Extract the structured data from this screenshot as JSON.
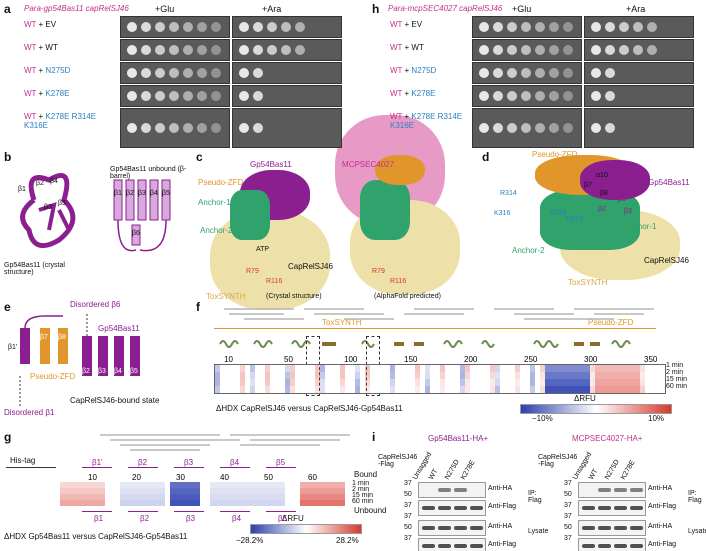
{
  "panel_labels": [
    "a",
    "b",
    "c",
    "d",
    "e",
    "f",
    "g",
    "h",
    "i"
  ],
  "panel_a": {
    "title": "Para-gp54Bas11 capRelSJ46",
    "cond_glu": "+Glu",
    "cond_ara": "+Ara",
    "rows": [
      {
        "wt": "WT",
        "plus": " + ",
        "rest": "EV",
        "rest_color": "#111"
      },
      {
        "wt": "WT",
        "plus": " + ",
        "rest": "WT",
        "rest_color": "#111"
      },
      {
        "wt": "WT",
        "plus": " + ",
        "rest": "N275D",
        "rest_color": "#2a7fc0"
      },
      {
        "wt": "WT",
        "plus": " + ",
        "rest": "K278E",
        "rest_color": "#2a7fc0"
      },
      {
        "wt": "WT",
        "plus": " + ",
        "rest": "K278E R314E K316E",
        "rest_color": "#2a7fc0"
      }
    ]
  },
  "panel_h": {
    "title": "Para-mcpSEC4027 capRelSJ46",
    "cond_glu": "+Glu",
    "cond_ara": "+Ara",
    "rows": [
      {
        "wt": "WT",
        "plus": " + ",
        "rest": "EV",
        "rest_color": "#111"
      },
      {
        "wt": "WT",
        "plus": " + ",
        "rest": "WT",
        "rest_color": "#111"
      },
      {
        "wt": "WT",
        "plus": " + ",
        "rest": "N275D",
        "rest_color": "#2a7fc0"
      },
      {
        "wt": "WT",
        "plus": " + ",
        "rest": "K278E",
        "rest_color": "#2a7fc0"
      },
      {
        "wt": "WT",
        "plus": " + ",
        "rest": "K278E R314E K316E",
        "rest_color": "#2a7fc0"
      }
    ]
  },
  "panel_b": {
    "crystal_label": "Gp54Bas11 (crystal structure)",
    "unbound_label": "Gp54Bas11 unbound (β-barrel)",
    "strands_crystal": [
      "β1",
      "β2",
      "β3",
      "β4",
      "β5"
    ],
    "strands_unbound": [
      "β1",
      "β2",
      "β3",
      "β4",
      "β5",
      "β6"
    ]
  },
  "panel_c": {
    "gp54": "Gp54Bas11",
    "mcp": "MCPSEC4027",
    "pseudo_zfd": "Pseudo-ZFD",
    "anchor1": "Anchor-1",
    "anchor2": "Anchor-2",
    "atp": "ATP",
    "r79": "R79",
    "r116": "R116",
    "caprel": "CapRelSJ46",
    "toxsynth": "ToxSYNTH",
    "crystal": "(Crystal structure)",
    "alphafold": "(AlphaFold predicted)"
  },
  "panel_d": {
    "pseudo_zfd": "Pseudo-ZFD",
    "r314": "R314",
    "k316": "K316",
    "k278": "K278",
    "n275": "N275",
    "alpha10": "α10",
    "beta7": "β7",
    "beta8": "β8",
    "beta4": "β4",
    "beta5": "β5",
    "beta1": "β1",
    "beta2": "β2",
    "beta3": "β3",
    "gp54": "Gp54Bas11",
    "anchor1": "Anchor-1",
    "anchor2": "Anchor-2",
    "caprel": "CapRelSJ46",
    "toxsynth": "ToxSYNTH"
  },
  "panel_e": {
    "disordered_b6": "Disordered β6",
    "disordered_b1": "Disordered β1",
    "gp54": "Gp54Bas11",
    "pseudo_zfd": "Pseudo-ZFD",
    "state": "CapRelSJ46-bound state",
    "strands": [
      "β1'",
      "β2",
      "β3",
      "β4",
      "β5",
      "β7",
      "β8"
    ]
  },
  "panel_f": {
    "toxsynth": "ToxSYNTH",
    "pseudo_zfd": "Pseudo-ZFD",
    "ticks": [
      "10",
      "50",
      "100",
      "150",
      "200",
      "250",
      "300",
      "350"
    ],
    "times": [
      "1 min",
      "2 min",
      "15 min",
      "60 min"
    ],
    "caption": "ΔHDX CapRelSJ46 versus CapRelSJ46-Gp54Bas11",
    "scale_title": "ΔRFU",
    "scale_min": "−10%",
    "scale_max": "10%"
  },
  "panel_g": {
    "his_tag": "His-tag",
    "ticks": [
      "10",
      "20",
      "30",
      "40",
      "50",
      "60"
    ],
    "top_strands": [
      "β1'",
      "β2",
      "β3",
      "β4",
      "β5"
    ],
    "bottom_strands": [
      "β1",
      "β2",
      "β3",
      "β4",
      "β5"
    ],
    "times": [
      "1 min",
      "2 min",
      "15 min",
      "60 min"
    ],
    "bound": "Bound",
    "unbound": "Unbound",
    "caption": "ΔHDX Gp54Bas11 versus CapRelSJ46-Gp54Bas11",
    "scale_title": "ΔRFU",
    "scale_min": "−28.2%",
    "scale_max": "28.2%"
  },
  "panel_i": {
    "left_title": "Gp54Bas11-HA+",
    "right_title": "MCPSEC4027-HA+",
    "row_label": "CapRelSJ46 -Flag",
    "lanes": [
      "Untagged",
      "WT",
      "N275D",
      "K278E"
    ],
    "anti_ha": "Anti-HA",
    "anti_flag": "Anti-Flag",
    "ip_flag": "IP: Flag",
    "lysate": "Lysate",
    "mw": [
      "37",
      "50",
      "37",
      "37",
      "50",
      "37"
    ]
  },
  "colors": {
    "gp54": "#8b1f8f",
    "mcp": "#e89ac7",
    "pseudo_zfd": "#e0962a",
    "anchor": "#2fa36b",
    "toxsynth": "#e6d49a",
    "wt_magenta": "#c0328b",
    "mutant_blue": "#2a7fc0",
    "hdx_blue": "#2b3fb0",
    "hdx_red": "#d9382b"
  }
}
